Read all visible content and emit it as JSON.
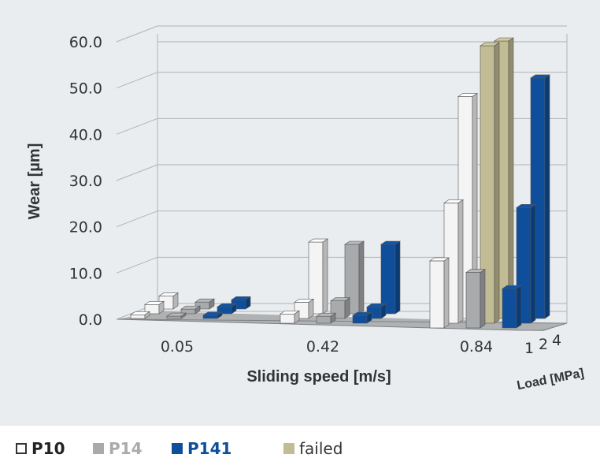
{
  "chart_data": {
    "type": "bar",
    "subtype": "3d-clustered",
    "ylabel": "Wear [µm]",
    "xlabel": "Sliding speed [m/s]",
    "zlabel": "Load [MPa]",
    "ylim": [
      0,
      60
    ],
    "y_ticks": [
      "0.0",
      "10.0",
      "20.0",
      "30.0",
      "40.0",
      "50.0",
      "60.0"
    ],
    "x_categories": [
      "0.05",
      "0.42",
      "0.84"
    ],
    "load_categories": [
      "1",
      "2",
      "4"
    ],
    "grid": true,
    "legend_position": "bottom",
    "series": [
      {
        "name": "P10",
        "color": "#f4f4f4",
        "values": {
          "0.05": [
            0.8,
            2.0,
            2.8
          ],
          "0.42": [
            2.0,
            3.5,
            15.5
          ],
          "0.84": [
            14.5,
            26.0,
            48.0
          ]
        }
      },
      {
        "name": "P14",
        "color": "#a9aaac",
        "values": {
          "0.05": [
            0.5,
            1.0,
            1.5
          ],
          "0.42": [
            1.5,
            3.8,
            15.0
          ],
          "0.84": [
            12.0,
            null,
            null
          ]
        },
        "failed": {
          "0.84": [
            false,
            true,
            true
          ]
        }
      },
      {
        "name": "P141",
        "color": "#0f4e9b",
        "values": {
          "0.05": [
            0.7,
            1.5,
            2.0
          ],
          "0.42": [
            1.7,
            2.5,
            15.0
          ],
          "0.84": [
            8.5,
            25.0,
            52.0
          ]
        }
      }
    ],
    "failed_marker": {
      "name": "failed",
      "color": "#c1bc93",
      "value": 60.0
    }
  },
  "legend": {
    "items": [
      {
        "label": "P10",
        "swatch": "#ffffff",
        "border": "#333333",
        "text_color": "#222222"
      },
      {
        "label": "P14",
        "swatch": "#a9aaac",
        "border": "#a9aaac",
        "text_color": "#a9aaac"
      },
      {
        "label": "P141",
        "swatch": "#0f4e9b",
        "border": "#0f4e9b",
        "text_color": "#0f4e9b"
      },
      {
        "label": "failed",
        "swatch": "#c1bc93",
        "border": "#c1bc93",
        "text_color": "#333333"
      }
    ]
  }
}
